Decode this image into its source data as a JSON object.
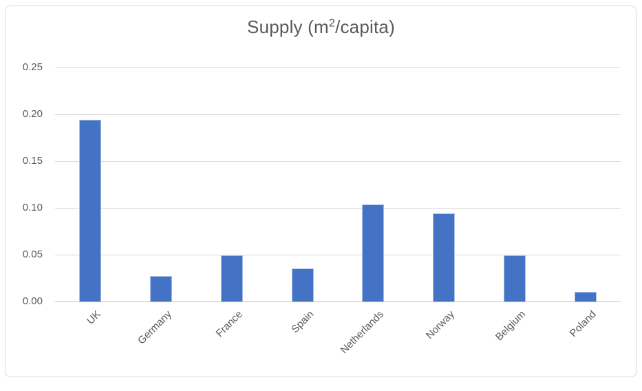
{
  "window": {
    "background_color": "#ffffff",
    "frame_border_color": "#d9d9d9"
  },
  "chart_data": {
    "type": "bar",
    "title": "Supply (m2/capita)",
    "title_parts": {
      "prefix": "Supply (m",
      "superscript": "2",
      "suffix": "/capita)"
    },
    "categories": [
      "UK",
      "Germany",
      "France",
      "Spain",
      "Netherlands",
      "Norway",
      "Belgium",
      "Poland"
    ],
    "values": [
      0.194,
      0.027,
      0.049,
      0.035,
      0.104,
      0.094,
      0.049,
      0.01
    ],
    "xlabel": "",
    "ylabel": "",
    "ylim": [
      0,
      0.25
    ],
    "ytick_step": 0.05,
    "ytick_labels": [
      "0.00",
      "0.05",
      "0.10",
      "0.15",
      "0.20",
      "0.25"
    ],
    "x_label_rotation_deg": -45,
    "grid": true,
    "legend": false,
    "colors": {
      "bar_fill": "#4472C4",
      "bar_edge": "#a9c0e8",
      "gridline": "#d9d9d9",
      "axis_line": "#bfbfbf",
      "text": "#595959"
    }
  }
}
